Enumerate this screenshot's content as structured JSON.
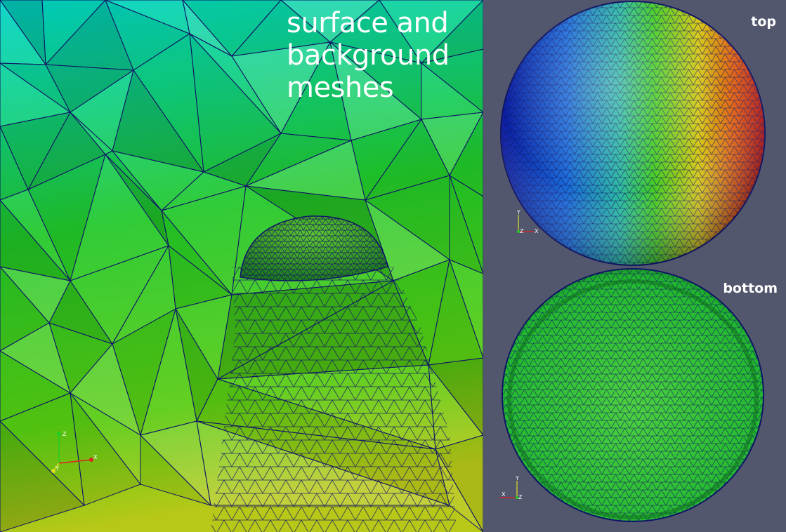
{
  "title_lines": [
    "surface and",
    "background",
    "meshes"
  ],
  "views": {
    "top": {
      "label": "top"
    },
    "bottom": {
      "label": "bottom"
    }
  },
  "axes": {
    "x": "X",
    "y": "Y",
    "z": "Z"
  },
  "colors": {
    "background": "#52576d",
    "mesh_edges": "#101565",
    "main_field_top": "#00d8c8",
    "main_field_mid": "#22c82a",
    "main_field_bottom": "#b8cc18",
    "sphere_left": "#0a1aa0",
    "sphere_center": "#33cc33",
    "sphere_right": "#d01010",
    "bottom_sphere": "#22bb33"
  },
  "icons": [
    "axes-triad-icon"
  ]
}
